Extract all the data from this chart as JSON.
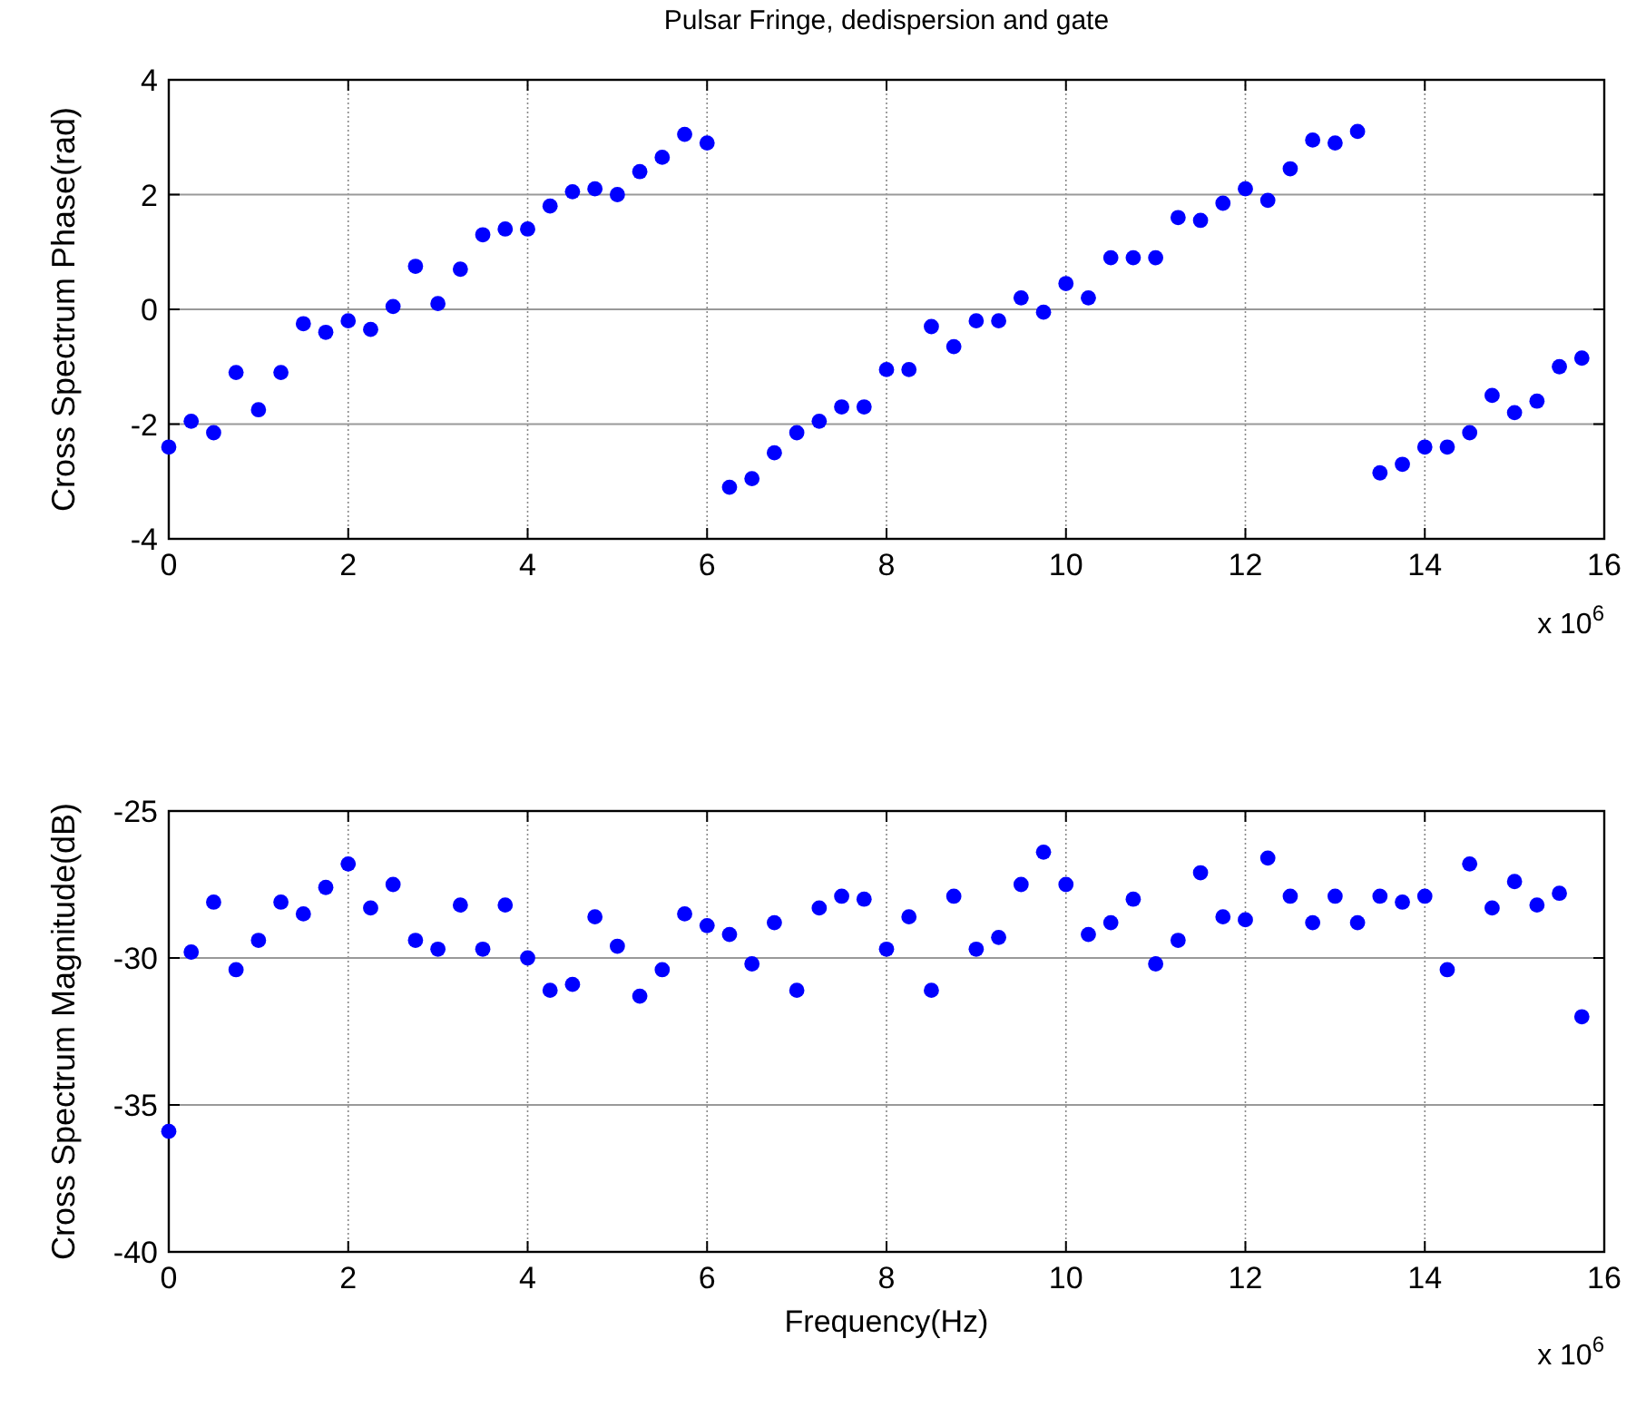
{
  "chart_data": [
    {
      "type": "scatter",
      "title": "Pulsar Fringe, dedispersion and gate",
      "ylabel": "Cross Spectrum Phase(rad)",
      "marker": "circle",
      "grid": true,
      "x": [
        0,
        0.25,
        0.5,
        0.75,
        1,
        1.25,
        1.5,
        1.75,
        2,
        2.25,
        2.5,
        2.75,
        3,
        3.25,
        3.5,
        3.75,
        4,
        4.25,
        4.5,
        4.75,
        5,
        5.25,
        5.5,
        5.75,
        6,
        6.25,
        6.5,
        6.75,
        7,
        7.25,
        7.5,
        7.75,
        8,
        8.25,
        8.5,
        8.75,
        9,
        9.25,
        9.5,
        9.75,
        10,
        10.25,
        10.5,
        10.75,
        11,
        11.25,
        11.5,
        11.75,
        12,
        12.25,
        12.5,
        12.75,
        13,
        13.25,
        13.5,
        13.75,
        14,
        14.25,
        14.5,
        14.75,
        15,
        15.25,
        15.5,
        15.75
      ],
      "series": [
        {
          "color": "#0000ff",
          "values": [
            -2.4,
            -1.95,
            -2.15,
            -1.1,
            -1.75,
            -1.1,
            -0.25,
            -0.4,
            -0.2,
            -0.35,
            0.05,
            0.75,
            0.1,
            0.7,
            1.3,
            1.4,
            1.4,
            1.8,
            2.05,
            2.1,
            2.0,
            2.4,
            2.65,
            3.05,
            2.9,
            -3.1,
            -2.95,
            -2.5,
            -2.15,
            -1.95,
            -1.7,
            -1.7,
            -1.05,
            -1.05,
            -0.3,
            -0.65,
            -0.2,
            -0.2,
            0.2,
            -0.05,
            0.45,
            0.2,
            0.9,
            0.9,
            0.9,
            1.6,
            1.55,
            1.85,
            2.1,
            1.9,
            2.45,
            2.95,
            2.9,
            3.1,
            -2.85,
            -2.7,
            -2.4,
            -2.4,
            -2.15,
            -1.5,
            -1.8,
            -1.6,
            -1.0,
            -0.85
          ]
        }
      ],
      "xlim": [
        0,
        16
      ],
      "xticks": [
        0,
        2,
        4,
        6,
        8,
        10,
        12,
        14,
        16
      ],
      "ylim": [
        -4,
        4
      ],
      "yticks": [
        -4,
        -2,
        0,
        2,
        4
      ],
      "annotations": [
        "x 10$^{6}$"
      ]
    },
    {
      "type": "scatter",
      "xlabel": "Frequency(Hz)",
      "ylabel": "Cross Spectrum Magnitude(dB)",
      "marker": "circle",
      "grid": true,
      "x": [
        0,
        0.25,
        0.5,
        0.75,
        1,
        1.25,
        1.5,
        1.75,
        2,
        2.25,
        2.5,
        2.75,
        3,
        3.25,
        3.5,
        3.75,
        4,
        4.25,
        4.5,
        4.75,
        5,
        5.25,
        5.5,
        5.75,
        6,
        6.25,
        6.5,
        6.75,
        7,
        7.25,
        7.5,
        7.75,
        8,
        8.25,
        8.5,
        8.75,
        9,
        9.25,
        9.5,
        9.75,
        10,
        10.25,
        10.5,
        10.75,
        11,
        11.25,
        11.5,
        11.75,
        12,
        12.25,
        12.5,
        12.75,
        13,
        13.25,
        13.5,
        13.75,
        14,
        14.25,
        14.5,
        14.75,
        15,
        15.25,
        15.5,
        15.75
      ],
      "series": [
        {
          "color": "#0000ff",
          "values": [
            -35.9,
            -29.8,
            -28.1,
            -30.4,
            -29.4,
            -28.1,
            -28.5,
            -27.6,
            -26.8,
            -28.3,
            -27.5,
            -29.4,
            -29.7,
            -28.2,
            -29.7,
            -28.2,
            -30.0,
            -31.1,
            -30.9,
            -28.6,
            -29.6,
            -31.3,
            -30.4,
            -28.5,
            -28.9,
            -29.2,
            -30.2,
            -28.8,
            -31.1,
            -28.3,
            -27.9,
            -28.0,
            -29.7,
            -28.6,
            -31.1,
            -27.9,
            -29.7,
            -29.3,
            -27.5,
            -26.4,
            -27.5,
            -29.2,
            -28.8,
            -28.0,
            -30.2,
            -29.4,
            -27.1,
            -28.6,
            -28.7,
            -26.6,
            -27.9,
            -28.8,
            -27.9,
            -28.8,
            -27.9,
            -28.1,
            -27.9,
            -30.4,
            -26.8,
            -28.3,
            -27.4,
            -28.2,
            -27.8,
            -32.0
          ]
        }
      ],
      "xlim": [
        0,
        16
      ],
      "xticks": [
        0,
        2,
        4,
        6,
        8,
        10,
        12,
        14,
        16
      ],
      "ylim": [
        -40,
        -25
      ],
      "yticks": [
        -40,
        -35,
        -30,
        -25
      ],
      "annotations": [
        "x 10$^{6}$"
      ]
    }
  ]
}
